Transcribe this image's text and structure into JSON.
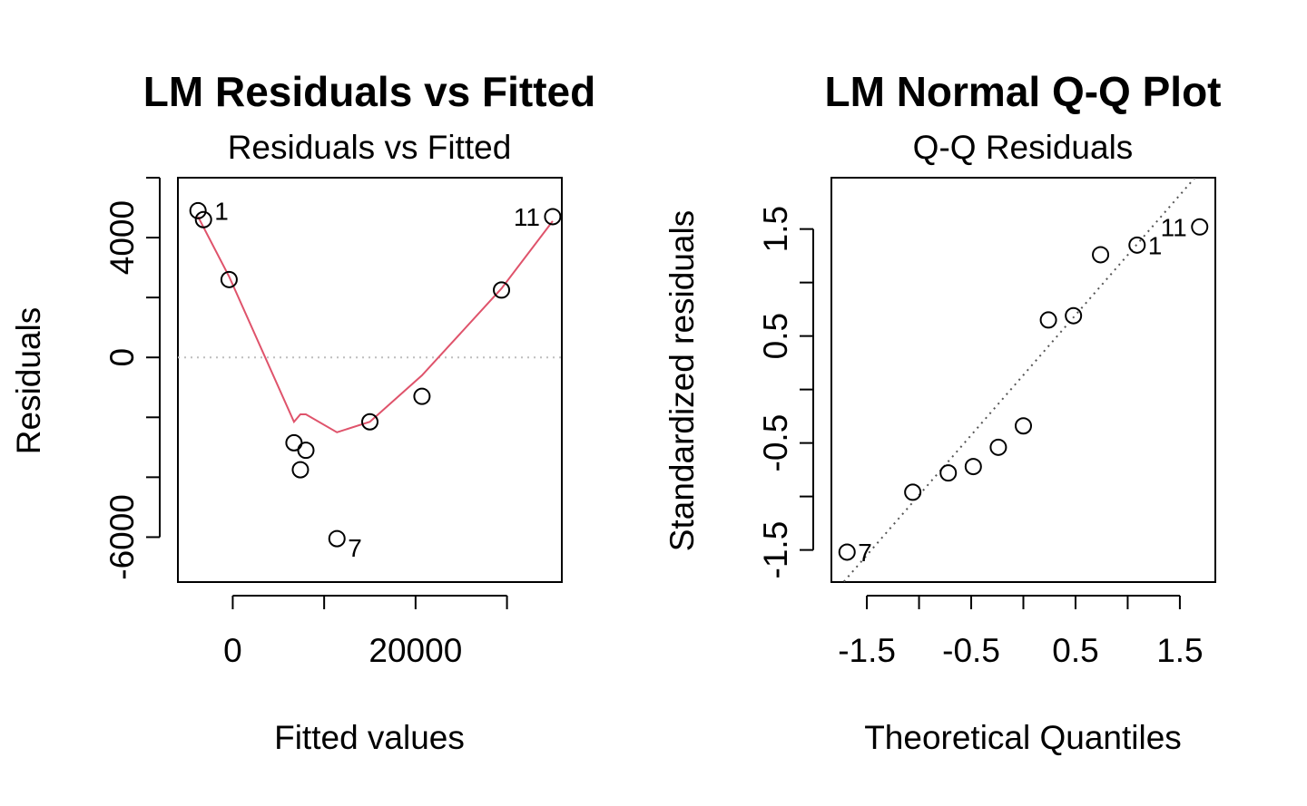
{
  "chart_data": [
    {
      "type": "scatter",
      "title": "LM Residuals vs Fitted",
      "subtitle": "Residuals vs Fitted",
      "xlabel": "Fitted values",
      "ylabel": "Residuals",
      "xlim": [
        -6000,
        36000
      ],
      "ylim": [
        -7500,
        6000
      ],
      "xticks": [
        0,
        10000,
        20000,
        30000
      ],
      "xtick_labels": [
        "0",
        "",
        "20000",
        ""
      ],
      "yticks": [
        -6000,
        -4000,
        -2000,
        0,
        2000,
        4000,
        6000
      ],
      "ytick_labels": [
        "-6000",
        "",
        "",
        "0",
        "",
        "4000",
        ""
      ],
      "points": [
        {
          "x": -3800,
          "y": 4900,
          "label": ""
        },
        {
          "x": -3200,
          "y": 4600,
          "label": "1"
        },
        {
          "x": -400,
          "y": 2600,
          "label": ""
        },
        {
          "x": 6700,
          "y": -2850,
          "label": ""
        },
        {
          "x": 7400,
          "y": -3750,
          "label": ""
        },
        {
          "x": 8000,
          "y": -3100,
          "label": ""
        },
        {
          "x": 11400,
          "y": -6050,
          "label": "7"
        },
        {
          "x": 15000,
          "y": -2150,
          "label": ""
        },
        {
          "x": 20700,
          "y": -1300,
          "label": ""
        },
        {
          "x": 29400,
          "y": 2250,
          "label": ""
        },
        {
          "x": 35000,
          "y": 4700,
          "label": "11"
        }
      ],
      "smooth_line": {
        "color": "#DF536B",
        "x": [
          -3800,
          -400,
          6700,
          7400,
          8000,
          11400,
          15000,
          20700,
          29400,
          35000
        ],
        "y": [
          4700,
          2700,
          -2150,
          -1900,
          -1900,
          -2500,
          -2150,
          -600,
          2300,
          4550
        ]
      },
      "reference_line": {
        "y": 0,
        "style": "dotted",
        "color": "#BEBEBE"
      }
    },
    {
      "type": "scatter",
      "title": "LM Normal Q-Q Plot",
      "subtitle": "Q-Q Residuals",
      "xlabel": "Theoretical Quantiles",
      "ylabel": "Standardized residuals",
      "xlim": [
        -1.84,
        1.84
      ],
      "ylim": [
        -1.8,
        1.98
      ],
      "xticks": [
        -1.5,
        -1.0,
        -0.5,
        0.0,
        0.5,
        1.0,
        1.5
      ],
      "xtick_labels": [
        "-1.5",
        "",
        "-0.5",
        "",
        "0.5",
        "",
        "1.5"
      ],
      "yticks": [
        -1.5,
        -1.0,
        -0.5,
        0.0,
        0.5,
        1.0,
        1.5
      ],
      "ytick_labels": [
        "-1.5",
        "",
        "-0.5",
        "",
        "0.5",
        "",
        "1.5"
      ],
      "points": [
        {
          "x": -1.69,
          "y": -1.52,
          "label": "7"
        },
        {
          "x": -1.06,
          "y": -0.96,
          "label": ""
        },
        {
          "x": -0.72,
          "y": -0.78,
          "label": ""
        },
        {
          "x": -0.48,
          "y": -0.72,
          "label": ""
        },
        {
          "x": -0.24,
          "y": -0.54,
          "label": ""
        },
        {
          "x": 0.0,
          "y": -0.34,
          "label": ""
        },
        {
          "x": 0.24,
          "y": 0.65,
          "label": ""
        },
        {
          "x": 0.48,
          "y": 0.69,
          "label": ""
        },
        {
          "x": 0.74,
          "y": 1.26,
          "label": ""
        },
        {
          "x": 1.09,
          "y": 1.35,
          "label": "1"
        },
        {
          "x": 1.69,
          "y": 1.52,
          "label": "11"
        }
      ],
      "reference_line": {
        "style": "dotted",
        "color": "#555555",
        "x": [
          -1.84,
          1.84
        ],
        "y": [
          -1.93,
          2.2
        ]
      }
    }
  ]
}
